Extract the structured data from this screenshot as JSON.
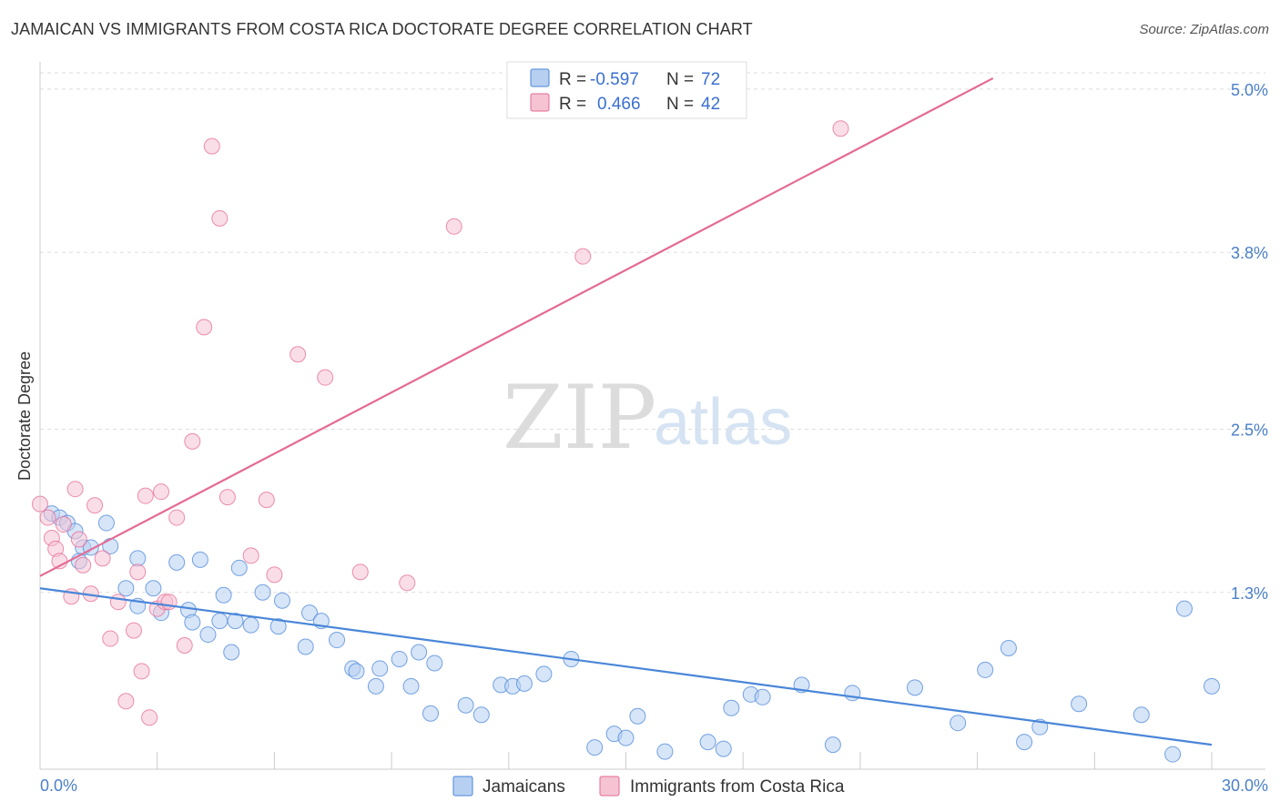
{
  "header": {
    "title": "JAMAICAN VS IMMIGRANTS FROM COSTA RICA DOCTORATE DEGREE CORRELATION CHART",
    "source": "Source: ZipAtlas.com"
  },
  "colors": {
    "blue": "#4a86d8",
    "blue_fill": "#b7d0f2",
    "pink": "#e46a94",
    "pink_fill": "#f6c3d3",
    "axis_label": "#4a7fc8"
  },
  "watermark": {
    "zip": "ZIP",
    "atlas": "atlas"
  },
  "legend": {
    "r_label": "R =",
    "n_label": "N =",
    "rows": [
      {
        "series": "Jamaicans",
        "r": "-0.597",
        "n": "72"
      },
      {
        "series": "Immigrants from Costa Rica",
        "r": "0.466",
        "n": "42"
      }
    ]
  },
  "chart_data": {
    "type": "scatter",
    "title": "JAMAICAN VS IMMIGRANTS FROM COSTA RICA DOCTORATE DEGREE CORRELATION CHART",
    "xlabel": "",
    "ylabel": "Doctorate Degree",
    "xlim": [
      0,
      30
    ],
    "ylim": [
      0,
      5.2
    ],
    "x_tick_labels": [
      "0.0%",
      "30.0%"
    ],
    "y_ticks": [
      1.3,
      2.5,
      3.8,
      5.0
    ],
    "y_tick_labels": [
      "1.3%",
      "2.5%",
      "3.8%",
      "5.0%"
    ],
    "grid": true,
    "legend_position": "top-center",
    "series": [
      {
        "name": "Jamaicans",
        "color": "#4a86d8",
        "r": -0.597,
        "n": 72,
        "trend": {
          "x": [
            0,
            30
          ],
          "y": [
            1.33,
            0.18
          ]
        },
        "points": [
          [
            0.3,
            1.88
          ],
          [
            0.5,
            1.85
          ],
          [
            0.7,
            1.81
          ],
          [
            0.9,
            1.75
          ],
          [
            1.1,
            1.63
          ],
          [
            1.3,
            1.63
          ],
          [
            1.0,
            1.53
          ],
          [
            1.7,
            1.81
          ],
          [
            1.8,
            1.64
          ],
          [
            2.2,
            1.33
          ],
          [
            2.5,
            1.2
          ],
          [
            2.5,
            1.55
          ],
          [
            2.9,
            1.33
          ],
          [
            3.1,
            1.15
          ],
          [
            3.5,
            1.52
          ],
          [
            3.8,
            1.17
          ],
          [
            3.9,
            1.08
          ],
          [
            4.1,
            1.54
          ],
          [
            4.3,
            0.99
          ],
          [
            4.6,
            1.09
          ],
          [
            4.7,
            1.28
          ],
          [
            4.9,
            0.86
          ],
          [
            5.1,
            1.48
          ],
          [
            5.0,
            1.09
          ],
          [
            5.4,
            1.06
          ],
          [
            5.7,
            1.3
          ],
          [
            6.1,
            1.05
          ],
          [
            6.2,
            1.24
          ],
          [
            6.8,
            0.9
          ],
          [
            6.9,
            1.15
          ],
          [
            7.2,
            1.09
          ],
          [
            7.6,
            0.95
          ],
          [
            8.0,
            0.74
          ],
          [
            8.1,
            0.72
          ],
          [
            8.6,
            0.61
          ],
          [
            8.7,
            0.74
          ],
          [
            9.2,
            0.81
          ],
          [
            9.5,
            0.61
          ],
          [
            9.7,
            0.86
          ],
          [
            10.0,
            0.41
          ],
          [
            10.1,
            0.78
          ],
          [
            10.9,
            0.47
          ],
          [
            11.3,
            0.4
          ],
          [
            11.8,
            0.62
          ],
          [
            12.1,
            0.61
          ],
          [
            12.4,
            0.63
          ],
          [
            12.9,
            0.7
          ],
          [
            13.6,
            0.81
          ],
          [
            14.2,
            0.16
          ],
          [
            14.7,
            0.26
          ],
          [
            15.0,
            0.23
          ],
          [
            15.3,
            0.39
          ],
          [
            16.0,
            0.13
          ],
          [
            17.1,
            0.2
          ],
          [
            17.5,
            0.15
          ],
          [
            17.7,
            0.45
          ],
          [
            18.2,
            0.55
          ],
          [
            18.5,
            0.53
          ],
          [
            19.5,
            0.62
          ],
          [
            20.3,
            0.18
          ],
          [
            20.8,
            0.56
          ],
          [
            22.4,
            0.6
          ],
          [
            23.5,
            0.34
          ],
          [
            24.2,
            0.73
          ],
          [
            24.8,
            0.89
          ],
          [
            25.2,
            0.2
          ],
          [
            25.6,
            0.31
          ],
          [
            26.6,
            0.48
          ],
          [
            29.0,
            0.11
          ],
          [
            28.2,
            0.4
          ],
          [
            29.3,
            1.18
          ],
          [
            30.0,
            0.61
          ]
        ]
      },
      {
        "name": "Immigrants from Costa Rica",
        "color": "#e46a94",
        "r": 0.466,
        "n": 42,
        "trend": {
          "x": [
            0,
            24.4
          ],
          "y": [
            1.42,
            5.08
          ]
        },
        "points": [
          [
            0.0,
            1.95
          ],
          [
            0.2,
            1.85
          ],
          [
            0.3,
            1.7
          ],
          [
            0.4,
            1.62
          ],
          [
            0.5,
            1.53
          ],
          [
            0.6,
            1.8
          ],
          [
            0.8,
            1.27
          ],
          [
            0.9,
            2.06
          ],
          [
            1.0,
            1.69
          ],
          [
            1.1,
            1.5
          ],
          [
            1.3,
            1.29
          ],
          [
            1.4,
            1.94
          ],
          [
            1.6,
            1.55
          ],
          [
            1.8,
            0.96
          ],
          [
            2.0,
            1.23
          ],
          [
            2.2,
            0.5
          ],
          [
            2.4,
            1.02
          ],
          [
            2.5,
            1.45
          ],
          [
            2.6,
            0.72
          ],
          [
            2.7,
            2.01
          ],
          [
            2.8,
            0.38
          ],
          [
            3.0,
            1.18
          ],
          [
            3.1,
            2.04
          ],
          [
            3.2,
            1.23
          ],
          [
            3.3,
            1.23
          ],
          [
            3.5,
            1.85
          ],
          [
            3.7,
            0.91
          ],
          [
            3.9,
            2.41
          ],
          [
            4.2,
            3.25
          ],
          [
            4.4,
            4.58
          ],
          [
            4.6,
            4.05
          ],
          [
            4.8,
            2.0
          ],
          [
            5.4,
            1.57
          ],
          [
            5.8,
            1.98
          ],
          [
            6.0,
            1.43
          ],
          [
            6.6,
            3.05
          ],
          [
            7.3,
            2.88
          ],
          [
            8.2,
            1.45
          ],
          [
            9.4,
            1.37
          ],
          [
            10.6,
            3.99
          ],
          [
            13.9,
            3.77
          ],
          [
            20.5,
            4.71
          ]
        ]
      }
    ]
  },
  "bottom_legend": {
    "items": [
      "Jamaicans",
      "Immigrants from Costa Rica"
    ]
  }
}
